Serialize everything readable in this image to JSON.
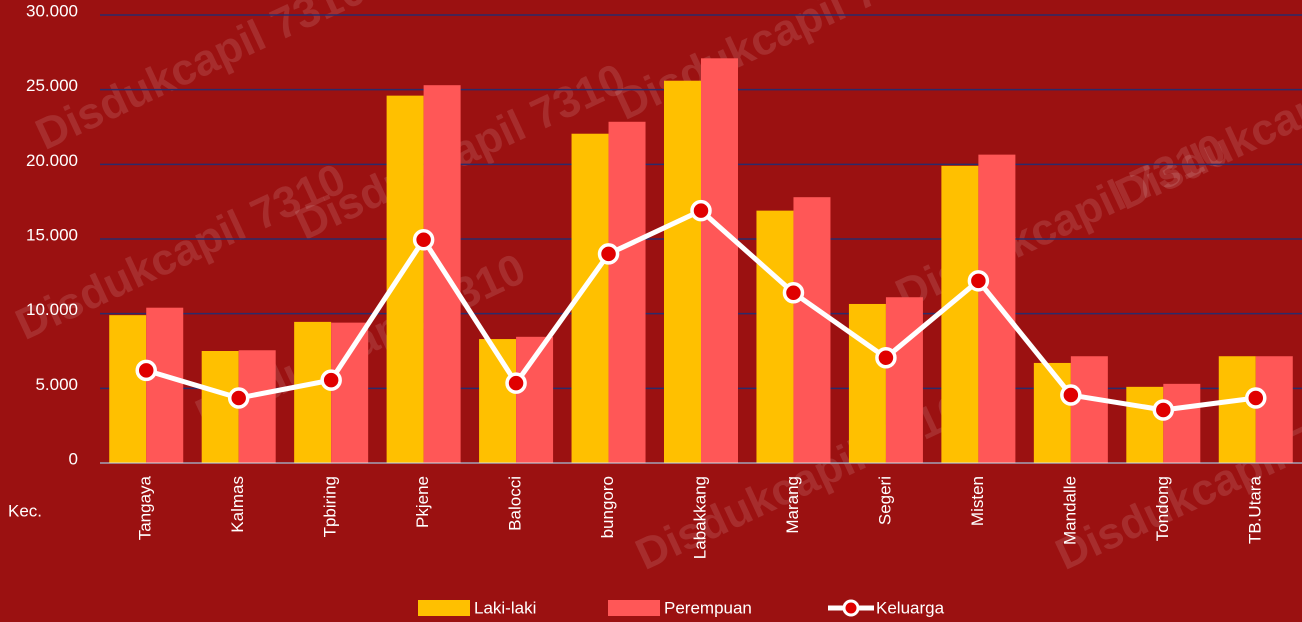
{
  "chart_data": {
    "type": "bar-line",
    "x_label": "Kec.",
    "watermark": "Disdukcapil 7310",
    "categories": [
      "Tangaya",
      "Kalmas",
      "Tpbiring",
      "Pkjene",
      "Balocci",
      "bungoro",
      "Labakkang",
      "Marang",
      "Segeri",
      "Misten",
      "Mandalle",
      "Tondong",
      "TB.Utara"
    ],
    "series": [
      {
        "name": "Laki-laki",
        "type": "bar",
        "color": "#ffc000",
        "values": [
          9900,
          7500,
          9450,
          24600,
          8300,
          22050,
          25600,
          16900,
          10650,
          19900,
          6700,
          5100,
          7150
        ]
      },
      {
        "name": "Perempuan",
        "type": "bar",
        "color": "#ff5757",
        "values": [
          10400,
          7550,
          9400,
          25300,
          8450,
          22850,
          27100,
          17800,
          11100,
          20650,
          7150,
          5300,
          7150
        ]
      },
      {
        "name": "Keluarga",
        "type": "line",
        "color": "#ffffff",
        "marker_color": "#e00000",
        "values": [
          6200,
          4350,
          5550,
          14950,
          5350,
          14000,
          16900,
          11400,
          7050,
          12200,
          4550,
          3550,
          4350
        ]
      }
    ],
    "ylim": [
      0,
      30000
    ],
    "yticks": [
      0,
      {
        "value": 5000,
        "label": "5.000"
      },
      {
        "value": 10000,
        "label": "10.000"
      },
      {
        "value": 15000,
        "label": "15.000"
      },
      {
        "value": 20000,
        "label": "20.000"
      },
      {
        "value": 25000,
        "label": "25.000"
      },
      {
        "value": 30000,
        "label": "30.000"
      }
    ],
    "grid": true,
    "legend": "bottom"
  }
}
